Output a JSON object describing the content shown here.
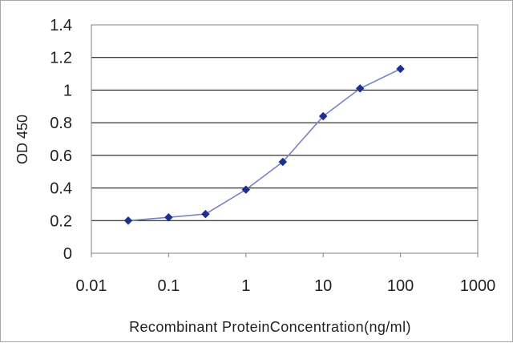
{
  "chart_data": {
    "type": "line",
    "title": "",
    "xlabel": "Recombinant ProteinConcentration(ng/ml)",
    "ylabel": "OD 450",
    "x_scale": "log",
    "xlim": [
      0.01,
      1000
    ],
    "ylim": [
      0,
      1.4
    ],
    "x_ticks": [
      "0.01",
      "0.1",
      "1",
      "10",
      "100",
      "1000"
    ],
    "y_ticks": [
      "0",
      "0.2",
      "0.4",
      "0.6",
      "0.8",
      "1",
      "1.2",
      "1.4"
    ],
    "grid": "horizontal",
    "legend": "none",
    "series": [
      {
        "x": [
          0.03,
          0.1,
          0.3,
          1,
          3,
          10,
          30,
          100
        ],
        "y": [
          0.2,
          0.22,
          0.24,
          0.39,
          0.56,
          0.84,
          1.01,
          1.13
        ]
      }
    ],
    "colors": {
      "line": "#7b82c8",
      "marker": "#1f2f8f",
      "grid": "#000000",
      "plot_border": "#808080"
    }
  }
}
